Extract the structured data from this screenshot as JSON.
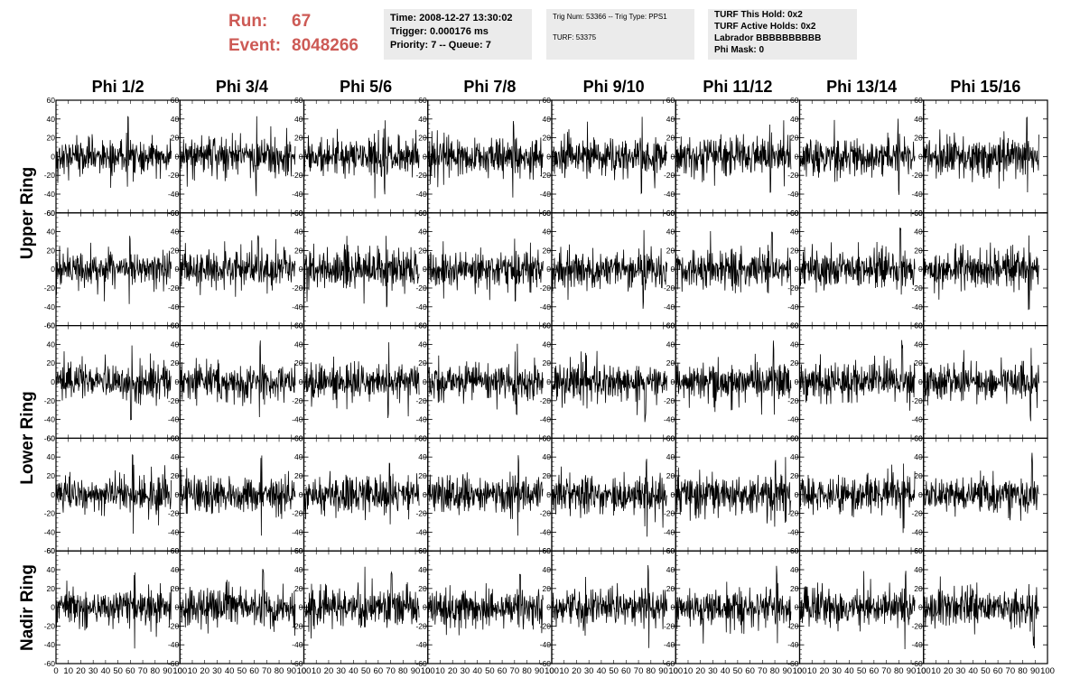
{
  "header": {
    "run_label": "Run:",
    "run_value": "67",
    "event_label": "Event:",
    "event_value": "8048266"
  },
  "info": {
    "time": "Time: 2008-12-27 13:30:02",
    "trigger": "Trigger: 0.000176 ms",
    "priority": "Priority: 7 -- Queue: 7",
    "trig_num": "Trig Num: 53366 -- Trig Type: PPS1",
    "turf": "TURF: 53375",
    "turf_hold": "TURF This Hold: 0x2",
    "turf_active": "TURF Active Holds: 0x2",
    "labrador": "Labrador BBBBBBBBBB",
    "phi_mask": "Phi Mask: 0"
  },
  "colors": {
    "header_red": "#cd5a55",
    "info_bg": "#ebebeb",
    "trace": "#000000"
  },
  "chart_data": {
    "type": "line",
    "columns": [
      "Phi 1/2",
      "Phi 3/4",
      "Phi 5/6",
      "Phi 7/8",
      "Phi 9/10",
      "Phi 11/12",
      "Phi 13/14",
      "Phi 15/16"
    ],
    "ring_labels": [
      "Upper Ring",
      "Lower Ring",
      "Nadir Ring"
    ],
    "rows": 5,
    "xlim": [
      0,
      100
    ],
    "ylim": [
      -60,
      60
    ],
    "x_ticks": [
      0,
      10,
      20,
      30,
      40,
      50,
      60,
      70,
      80,
      90,
      100
    ],
    "y_ticks": [
      -60,
      -40,
      -20,
      0,
      20,
      40,
      60
    ],
    "samples_per_trace": 256,
    "trace_x_range": [
      0,
      93
    ],
    "noise_amplitude": 12,
    "peak_amplitude": 45
  }
}
